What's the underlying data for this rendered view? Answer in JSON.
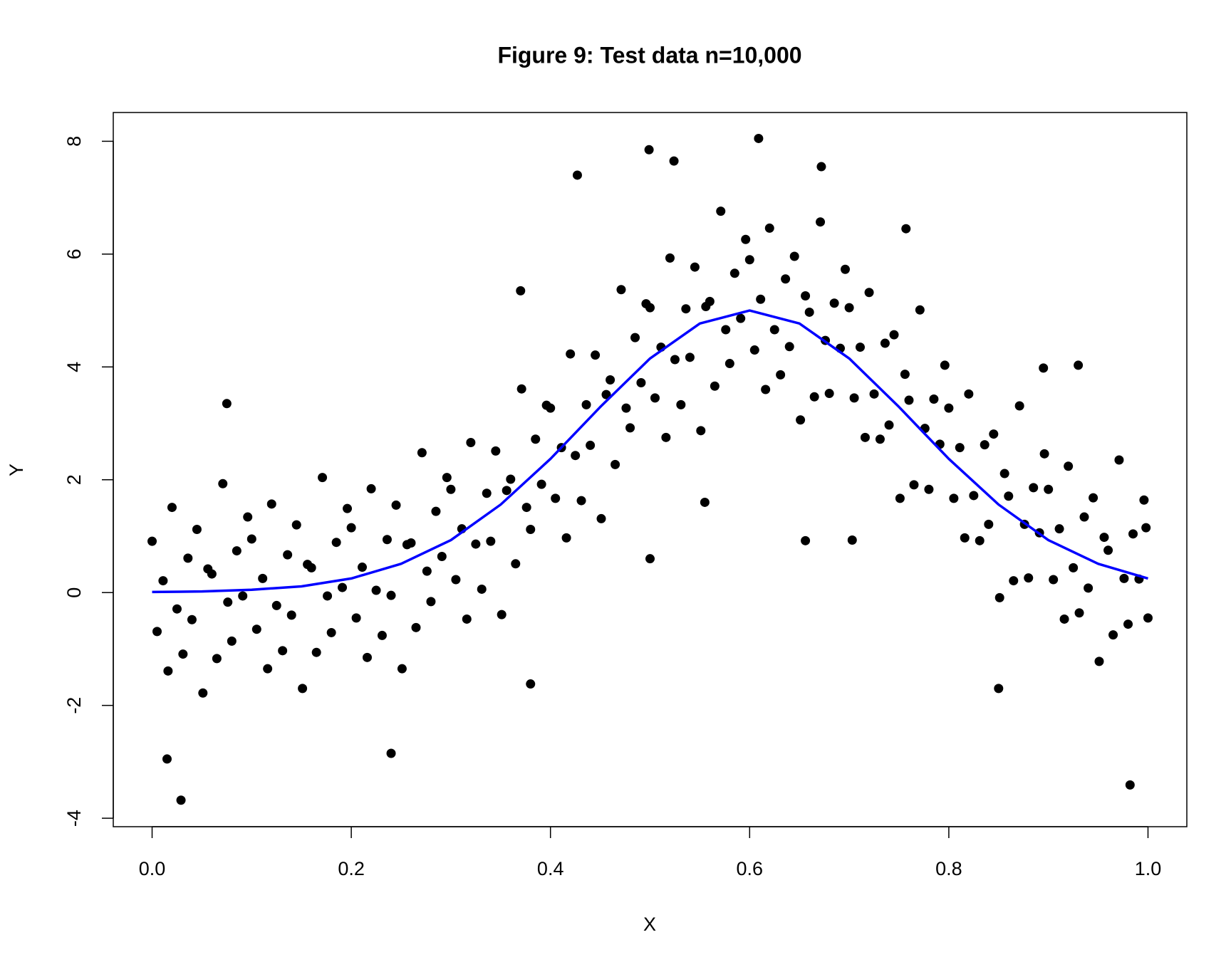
{
  "chart_data": {
    "type": "scatter",
    "title": "Figure 9: Test data n=10,000",
    "xlabel": "X",
    "ylabel": "Y",
    "xlim": [
      -0.039,
      1.039
    ],
    "ylim": [
      -4.15,
      8.51
    ],
    "xticks": [
      {
        "value": 0,
        "label": "0.0"
      },
      {
        "value": 0.2,
        "label": "0.2"
      },
      {
        "value": 0.4,
        "label": "0.4"
      },
      {
        "value": 0.6,
        "label": "0.6"
      },
      {
        "value": 0.8,
        "label": "0.8"
      },
      {
        "value": 1,
        "label": "1.0"
      }
    ],
    "yticks": [
      -4,
      -2,
      0,
      2,
      4,
      6,
      8
    ],
    "points": {
      "color": "#000000",
      "x": [
        0,
        0.005,
        0.011,
        0.016,
        0.02,
        0.025,
        0.031,
        0.036,
        0.04,
        0.045,
        0.051,
        0.056,
        0.06,
        0.065,
        0.071,
        0.076,
        0.08,
        0.085,
        0.091,
        0.096,
        0.1,
        0.105,
        0.111,
        0.116,
        0.12,
        0.125,
        0.131,
        0.136,
        0.14,
        0.145,
        0.151,
        0.156,
        0.16,
        0.165,
        0.171,
        0.176,
        0.18,
        0.185,
        0.191,
        0.196,
        0.2,
        0.205,
        0.211,
        0.216,
        0.22,
        0.225,
        0.231,
        0.236,
        0.24,
        0.245,
        0.251,
        0.256,
        0.26,
        0.265,
        0.271,
        0.276,
        0.28,
        0.285,
        0.291,
        0.296,
        0.3,
        0.305,
        0.311,
        0.316,
        0.32,
        0.325,
        0.331,
        0.336,
        0.34,
        0.345,
        0.351,
        0.356,
        0.36,
        0.365,
        0.371,
        0.376,
        0.38,
        0.385,
        0.391,
        0.396,
        0.4,
        0.405,
        0.411,
        0.416,
        0.42,
        0.425,
        0.431,
        0.436,
        0.44,
        0.445,
        0.451,
        0.456,
        0.46,
        0.465,
        0.471,
        0.476,
        0.48,
        0.485,
        0.491,
        0.496,
        0.5,
        0.505,
        0.511,
        0.516,
        0.52,
        0.525,
        0.531,
        0.536,
        0.54,
        0.545,
        0.551,
        0.556,
        0.56,
        0.565,
        0.571,
        0.576,
        0.58,
        0.585,
        0.591,
        0.596,
        0.6,
        0.605,
        0.611,
        0.616,
        0.62,
        0.625,
        0.631,
        0.636,
        0.64,
        0.645,
        0.651,
        0.656,
        0.66,
        0.665,
        0.671,
        0.676,
        0.68,
        0.685,
        0.691,
        0.696,
        0.7,
        0.705,
        0.711,
        0.716,
        0.72,
        0.725,
        0.731,
        0.736,
        0.74,
        0.745,
        0.751,
        0.756,
        0.76,
        0.765,
        0.771,
        0.776,
        0.78,
        0.785,
        0.791,
        0.796,
        0.8,
        0.805,
        0.811,
        0.816,
        0.82,
        0.825,
        0.831,
        0.836,
        0.84,
        0.845,
        0.851,
        0.856,
        0.86,
        0.865,
        0.871,
        0.876,
        0.88,
        0.885,
        0.891,
        0.896,
        0.9,
        0.905,
        0.911,
        0.916,
        0.92,
        0.925,
        0.931,
        0.936,
        0.94,
        0.945,
        0.951,
        0.956,
        0.96,
        0.965,
        0.971,
        0.976,
        0.98,
        0.985,
        0.991,
        0.996,
        0.998,
        1,
        0.029,
        0.982,
        0.499,
        0.609,
        0.427,
        0.672,
        0.5,
        0.656,
        0.703,
        0.555,
        0.015,
        0.24,
        0.38,
        0.93,
        0.895,
        0.075,
        0.37,
        0.85,
        0.757,
        0.524
      ],
      "y": [
        0.91,
        -0.69,
        0.21,
        -1.39,
        1.51,
        -0.29,
        -1.09,
        0.61,
        -0.48,
        1.12,
        -1.78,
        0.42,
        0.33,
        -1.17,
        1.93,
        -0.17,
        -0.86,
        0.74,
        -0.06,
        1.34,
        0.95,
        -0.65,
        0.25,
        -1.35,
        1.57,
        -0.23,
        -1.03,
        0.67,
        -0.4,
        1.2,
        -1.7,
        0.5,
        0.44,
        -1.06,
        2.04,
        -0.06,
        -0.71,
        0.89,
        0.09,
        1.49,
        1.15,
        -0.45,
        0.45,
        -1.15,
        1.84,
        0.04,
        -0.76,
        0.94,
        -0.05,
        1.55,
        -1.35,
        0.85,
        0.88,
        -0.62,
        2.48,
        0.38,
        -0.16,
        1.44,
        0.64,
        2.04,
        1.83,
        0.23,
        1.13,
        -0.47,
        2.66,
        0.86,
        0.06,
        1.76,
        0.91,
        2.51,
        -0.39,
        1.81,
        2.01,
        0.51,
        3.61,
        1.51,
        1.12,
        2.72,
        1.92,
        3.32,
        3.27,
        1.67,
        2.57,
        0.97,
        4.23,
        2.43,
        1.63,
        3.33,
        2.61,
        4.21,
        1.31,
        3.51,
        3.77,
        2.27,
        5.37,
        3.27,
        2.92,
        4.52,
        3.72,
        5.12,
        5.05,
        3.45,
        4.35,
        2.75,
        5.93,
        4.13,
        3.33,
        5.03,
        4.17,
        5.77,
        2.87,
        5.07,
        5.16,
        3.66,
        6.76,
        4.66,
        4.06,
        5.66,
        4.86,
        6.26,
        5.9,
        4.3,
        5.2,
        3.6,
        6.46,
        4.66,
        3.86,
        5.56,
        4.36,
        5.96,
        3.06,
        5.26,
        4.97,
        3.47,
        6.57,
        4.47,
        3.53,
        5.13,
        4.33,
        5.73,
        5.05,
        3.45,
        4.35,
        2.75,
        5.32,
        3.52,
        2.72,
        4.42,
        2.97,
        4.57,
        1.67,
        3.87,
        3.41,
        1.91,
        5.01,
        2.91,
        1.83,
        3.43,
        2.63,
        4.03,
        3.27,
        1.67,
        2.57,
        0.97,
        3.52,
        1.72,
        0.92,
        2.62,
        1.21,
        2.81,
        -0.09,
        2.11,
        1.71,
        0.21,
        3.31,
        1.21,
        0.26,
        1.86,
        1.06,
        2.46,
        1.83,
        0.23,
        1.13,
        -0.47,
        2.24,
        0.44,
        -0.36,
        1.34,
        0.08,
        1.68,
        -1.22,
        0.98,
        0.75,
        -0.75,
        2.35,
        0.25,
        -0.56,
        1.04,
        0.24,
        1.64,
        1.15,
        -0.45,
        -3.68,
        -3.41,
        7.85,
        8.05,
        7.4,
        7.55,
        0.6,
        0.92,
        0.93,
        1.6,
        -2.95,
        -2.85,
        -1.62,
        4.03,
        3.98,
        3.35,
        5.35,
        -1.7,
        6.45,
        7.65
      ]
    },
    "curve": {
      "color": "#0000ff",
      "x": [
        0,
        0.05,
        0.1,
        0.15,
        0.2,
        0.25,
        0.3,
        0.35,
        0.4,
        0.45,
        0.5,
        0.55,
        0.6,
        0.65,
        0.7,
        0.75,
        0.8,
        0.85,
        0.9,
        0.95,
        1
      ],
      "y": [
        0.01,
        0.02,
        0.05,
        0.11,
        0.25,
        0.51,
        0.93,
        1.56,
        2.37,
        3.29,
        4.15,
        4.77,
        5,
        4.77,
        4.15,
        3.29,
        2.37,
        1.56,
        0.93,
        0.51,
        0.25
      ]
    }
  }
}
